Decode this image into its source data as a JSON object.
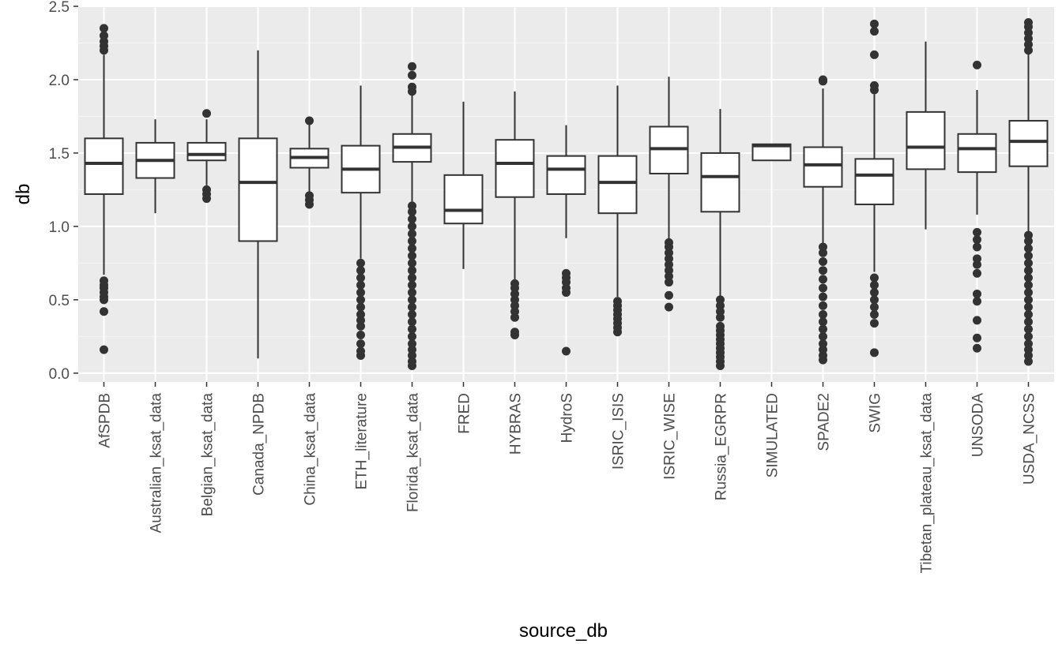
{
  "chart_data": {
    "type": "boxplot",
    "xlabel": "source_db",
    "ylabel": "db",
    "ylim": [
      -0.06,
      2.5
    ],
    "yticks": [
      0.0,
      0.5,
      1.0,
      1.5,
      2.0,
      2.5
    ],
    "ytick_labels": [
      "0.0",
      "0.5",
      "1.0",
      "1.5",
      "2.0",
      "2.5"
    ],
    "grid": true,
    "legend": "none",
    "colors": {
      "panel": "#ebebeb",
      "grid_major": "#ffffff",
      "box_fill": "#ffffff",
      "box_line": "#333333",
      "outlier": "#333333"
    },
    "categories": [
      "AfSPDB",
      "Australian_ksat_data",
      "Belgian_ksat_data",
      "Canada_NPDB",
      "China_ksat_data",
      "ETH_literature",
      "Florida_ksat_data",
      "FRED",
      "HYBRAS",
      "HydroS",
      "ISRIC_ISIS",
      "ISRIC_WISE",
      "Russia_EGRPR",
      "SIMULATED",
      "SPADE2",
      "SWIG",
      "Tibetan_plateau_ksat_data",
      "UNSODA",
      "USDA_NCSS"
    ],
    "boxes": [
      {
        "whisker_low": 0.67,
        "q1": 1.22,
        "median": 1.43,
        "q3": 1.6,
        "whisker_high": 2.17,
        "outliers": [
          0.16,
          0.42,
          0.5,
          0.52,
          0.55,
          0.58,
          0.6,
          0.63,
          2.2,
          2.23,
          2.26,
          2.3,
          2.35
        ]
      },
      {
        "whisker_low": 1.09,
        "q1": 1.33,
        "median": 1.45,
        "q3": 1.57,
        "whisker_high": 1.73,
        "outliers": []
      },
      {
        "whisker_low": 1.28,
        "q1": 1.45,
        "median": 1.49,
        "q3": 1.57,
        "whisker_high": 1.73,
        "outliers": [
          1.19,
          1.22,
          1.25,
          1.77
        ]
      },
      {
        "whisker_low": 0.1,
        "q1": 0.9,
        "median": 1.3,
        "q3": 1.6,
        "whisker_high": 2.2,
        "outliers": []
      },
      {
        "whisker_low": 1.23,
        "q1": 1.4,
        "median": 1.47,
        "q3": 1.53,
        "whisker_high": 1.7,
        "outliers": [
          1.15,
          1.18,
          1.21,
          1.72
        ]
      },
      {
        "whisker_low": 0.78,
        "q1": 1.23,
        "median": 1.39,
        "q3": 1.55,
        "whisker_high": 1.96,
        "outliers": [
          0.12,
          0.15,
          0.2,
          0.26,
          0.32,
          0.36,
          0.4,
          0.45,
          0.5,
          0.55,
          0.6,
          0.65,
          0.7,
          0.75
        ]
      },
      {
        "whisker_low": 1.16,
        "q1": 1.44,
        "median": 1.54,
        "q3": 1.63,
        "whisker_high": 1.9,
        "outliers": [
          0.05,
          0.08,
          0.12,
          0.16,
          0.2,
          0.25,
          0.3,
          0.35,
          0.4,
          0.45,
          0.5,
          0.55,
          0.6,
          0.65,
          0.7,
          0.75,
          0.8,
          0.85,
          0.9,
          0.95,
          1.0,
          1.05,
          1.1,
          1.14,
          1.92,
          1.95,
          2.03,
          2.09
        ]
      },
      {
        "whisker_low": 0.71,
        "q1": 1.02,
        "median": 1.11,
        "q3": 1.35,
        "whisker_high": 1.85,
        "outliers": []
      },
      {
        "whisker_low": 0.63,
        "q1": 1.2,
        "median": 1.43,
        "q3": 1.59,
        "whisker_high": 1.92,
        "outliers": [
          0.26,
          0.28,
          0.38,
          0.42,
          0.46,
          0.5,
          0.54,
          0.58,
          0.61
        ]
      },
      {
        "whisker_low": 0.92,
        "q1": 1.22,
        "median": 1.39,
        "q3": 1.48,
        "whisker_high": 1.69,
        "outliers": [
          0.15,
          0.55,
          0.58,
          0.62,
          0.65,
          0.68
        ]
      },
      {
        "whisker_low": 0.52,
        "q1": 1.09,
        "median": 1.3,
        "q3": 1.48,
        "whisker_high": 1.96,
        "outliers": [
          0.28,
          0.31,
          0.34,
          0.37,
          0.4,
          0.43,
          0.46,
          0.49
        ]
      },
      {
        "whisker_low": 0.9,
        "q1": 1.36,
        "median": 1.53,
        "q3": 1.68,
        "whisker_high": 2.02,
        "outliers": [
          0.45,
          0.53,
          0.62,
          0.66,
          0.7,
          0.74,
          0.78,
          0.82,
          0.86,
          0.89
        ]
      },
      {
        "whisker_low": 0.52,
        "q1": 1.1,
        "median": 1.34,
        "q3": 1.5,
        "whisker_high": 1.8,
        "outliers": [
          0.05,
          0.08,
          0.11,
          0.14,
          0.17,
          0.2,
          0.23,
          0.26,
          0.29,
          0.32,
          0.38,
          0.42,
          0.46,
          0.5
        ]
      },
      {
        "whisker_low": 1.45,
        "q1": 1.45,
        "median": 1.55,
        "q3": 1.56,
        "whisker_high": 1.56,
        "outliers": []
      },
      {
        "whisker_low": 0.88,
        "q1": 1.27,
        "median": 1.42,
        "q3": 1.54,
        "whisker_high": 1.94,
        "outliers": [
          0.09,
          0.12,
          0.16,
          0.2,
          0.25,
          0.3,
          0.35,
          0.4,
          0.46,
          0.52,
          0.58,
          0.64,
          0.7,
          0.76,
          0.82,
          0.86,
          1.99,
          2.0
        ]
      },
      {
        "whisker_low": 0.69,
        "q1": 1.15,
        "median": 1.35,
        "q3": 1.46,
        "whisker_high": 1.9,
        "outliers": [
          0.14,
          0.34,
          0.4,
          0.45,
          0.5,
          0.55,
          0.6,
          0.65,
          1.93,
          1.96,
          2.17,
          2.33,
          2.38
        ]
      },
      {
        "whisker_low": 0.98,
        "q1": 1.39,
        "median": 1.54,
        "q3": 1.78,
        "whisker_high": 2.26,
        "outliers": []
      },
      {
        "whisker_low": 1.08,
        "q1": 1.37,
        "median": 1.53,
        "q3": 1.63,
        "whisker_high": 1.93,
        "outliers": [
          0.17,
          0.24,
          0.36,
          0.49,
          0.54,
          0.68,
          0.74,
          0.78,
          0.86,
          0.91,
          0.96,
          2.1
        ]
      },
      {
        "whisker_low": 0.96,
        "q1": 1.41,
        "median": 1.58,
        "q3": 1.72,
        "whisker_high": 2.18,
        "outliers": [
          0.08,
          0.12,
          0.16,
          0.2,
          0.25,
          0.3,
          0.35,
          0.4,
          0.45,
          0.5,
          0.55,
          0.6,
          0.65,
          0.7,
          0.75,
          0.8,
          0.85,
          0.9,
          0.94,
          2.2,
          2.24,
          2.28,
          2.32,
          2.36,
          2.39
        ]
      }
    ]
  }
}
